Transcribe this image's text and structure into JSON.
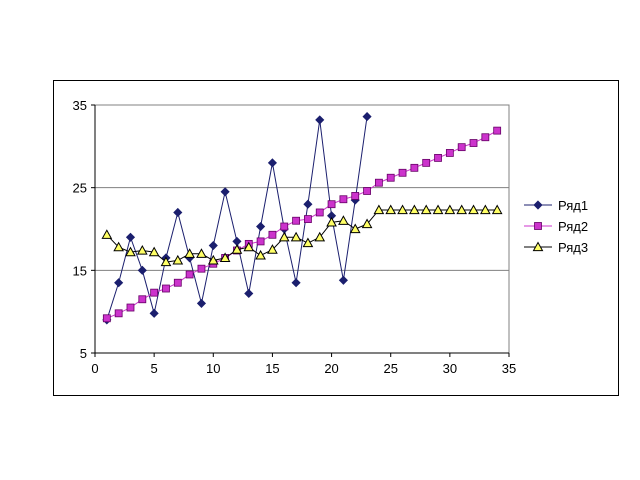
{
  "chart_data": {
    "type": "line",
    "title": "",
    "xlabel": "",
    "ylabel": "",
    "xlim": [
      0,
      35
    ],
    "ylim": [
      5,
      35
    ],
    "xticks": [
      0,
      5,
      10,
      15,
      20,
      25,
      30,
      35
    ],
    "yticks": [
      5,
      15,
      25,
      35
    ],
    "grid": "horizontal",
    "legend_position": "right",
    "series": [
      {
        "name": "Ряд1",
        "color": "#1b1f6e",
        "marker": "diamond",
        "marker_fill": "#1b1f6e",
        "x": [
          1,
          2,
          3,
          4,
          5,
          6,
          7,
          8,
          9,
          10,
          11,
          12,
          13,
          14,
          15,
          16,
          17,
          18,
          19,
          20,
          21,
          22,
          23
        ],
        "y": [
          9,
          13.5,
          19,
          15,
          9.8,
          16.5,
          22,
          16.5,
          11,
          18,
          24.5,
          18.5,
          12.2,
          20.3,
          28,
          20,
          13.5,
          23,
          33.2,
          21.6,
          13.8,
          23.5,
          33.6
        ]
      },
      {
        "name": "Ряд2",
        "color": "#cc33cc",
        "marker": "square",
        "marker_fill": "#cc33cc",
        "x": [
          1,
          2,
          3,
          4,
          5,
          6,
          7,
          8,
          9,
          10,
          11,
          12,
          13,
          14,
          15,
          16,
          17,
          18,
          19,
          20,
          21,
          22,
          23,
          24,
          25,
          26,
          27,
          28,
          29,
          30,
          31,
          32,
          33,
          34
        ],
        "y": [
          9.2,
          9.8,
          10.5,
          11.5,
          12.3,
          12.8,
          13.5,
          14.5,
          15.2,
          15.8,
          16.5,
          17.4,
          18.2,
          18.5,
          19.3,
          20.3,
          21,
          21.2,
          22,
          23,
          23.6,
          24,
          24.6,
          25.6,
          26.2,
          26.8,
          27.4,
          28,
          28.6,
          29.2,
          29.9,
          30.4,
          31.1,
          31.9
        ]
      },
      {
        "name": "Ряд3",
        "color": "#000000",
        "marker": "triangle",
        "marker_fill": "#ffff66",
        "x": [
          1,
          2,
          3,
          4,
          5,
          6,
          7,
          8,
          9,
          10,
          11,
          12,
          13,
          14,
          15,
          16,
          17,
          18,
          19,
          20,
          21,
          22,
          23,
          24,
          25,
          26,
          27,
          28,
          29,
          30,
          31,
          32,
          33,
          34
        ],
        "y": [
          19.3,
          17.8,
          17.2,
          17.4,
          17.2,
          16,
          16.2,
          17,
          17,
          16.2,
          16.5,
          17.5,
          17.8,
          16.8,
          17.5,
          19,
          19,
          18.3,
          19,
          20.8,
          21,
          20,
          20.6,
          22.3,
          22.3,
          22.3,
          22.3,
          22.3,
          22.3,
          22.3,
          22.3,
          22.3,
          22.3,
          22.3
        ]
      }
    ]
  }
}
